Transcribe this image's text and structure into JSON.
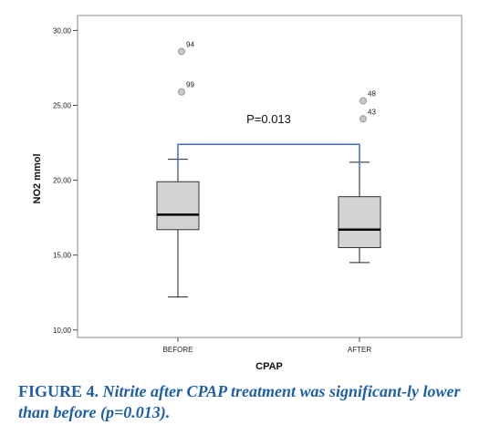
{
  "chart_data": {
    "type": "boxplot",
    "xlabel": "CPAP",
    "ylabel": "NO2 mmol",
    "ylim": [
      9.5,
      31
    ],
    "yticks": [
      "10,00",
      "15,00",
      "20,00",
      "25,00",
      "30,00"
    ],
    "ytick_values": [
      10,
      15,
      20,
      25,
      30
    ],
    "categories": [
      "BEFORE",
      "AFTER"
    ],
    "boxes": [
      {
        "category": "BEFORE",
        "whisker_low": 12.2,
        "q1": 16.7,
        "median": 17.7,
        "q3": 19.9,
        "whisker_high": 21.4,
        "outliers": [
          {
            "value": 28.6,
            "label": "94"
          },
          {
            "value": 25.9,
            "label": "99"
          }
        ]
      },
      {
        "category": "AFTER",
        "whisker_low": 14.5,
        "q1": 15.5,
        "median": 16.7,
        "q3": 18.9,
        "whisker_high": 21.2,
        "outliers": [
          {
            "value": 25.3,
            "label": "48"
          },
          {
            "value": 24.1,
            "label": "43"
          }
        ]
      }
    ],
    "annotation": {
      "text": "P=0.013",
      "bracket_value": 22.4,
      "bracket_bottom": 20.9
    },
    "colors": {
      "box_fill": "#d3d3d3",
      "outlier_fill": "#c8c8c8",
      "bracket": "#3b6cc7"
    }
  },
  "caption": {
    "label": "FIGURE 4.",
    "text": "Nitrite after CPAP treatment was significant-ly lower than before (p=0.013)."
  }
}
